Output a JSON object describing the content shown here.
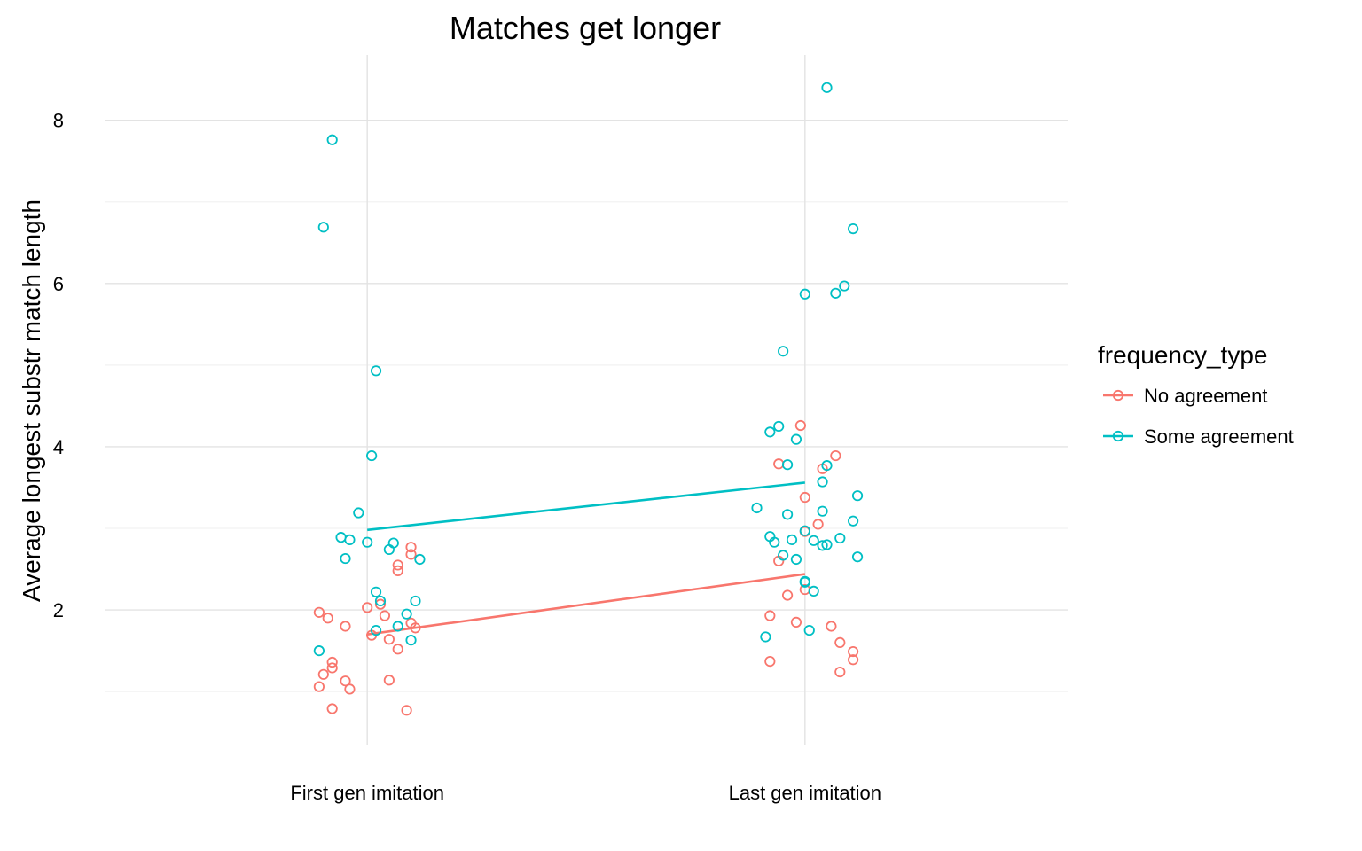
{
  "chart_data": {
    "type": "scatter",
    "title": "Matches get longer",
    "xlabel": "",
    "ylabel": "Average longest substr match length",
    "categories": [
      "First gen imitation",
      "Last gen imitation"
    ],
    "ylim": [
      0.35,
      8.8
    ],
    "yticks": [
      2,
      4,
      6,
      8
    ],
    "grid": true,
    "legend": {
      "title": "frequency_type",
      "placement": "right"
    },
    "series": [
      {
        "name": "No agreement",
        "color": "#F8766D",
        "means": [
          1.7,
          2.44
        ],
        "points": [
          {
            "x": 0.89,
            "y": 1.97
          },
          {
            "x": 0.91,
            "y": 1.9
          },
          {
            "x": 0.95,
            "y": 1.8
          },
          {
            "x": 0.92,
            "y": 1.36
          },
          {
            "x": 0.92,
            "y": 1.29
          },
          {
            "x": 0.9,
            "y": 1.21
          },
          {
            "x": 0.89,
            "y": 1.06
          },
          {
            "x": 0.95,
            "y": 1.13
          },
          {
            "x": 0.96,
            "y": 1.03
          },
          {
            "x": 0.92,
            "y": 0.79
          },
          {
            "x": 1.0,
            "y": 2.03
          },
          {
            "x": 1.04,
            "y": 1.93
          },
          {
            "x": 1.01,
            "y": 1.69
          },
          {
            "x": 1.05,
            "y": 1.64
          },
          {
            "x": 1.07,
            "y": 1.52
          },
          {
            "x": 1.05,
            "y": 1.14
          },
          {
            "x": 1.09,
            "y": 0.77
          },
          {
            "x": 1.07,
            "y": 2.48
          },
          {
            "x": 1.07,
            "y": 2.55
          },
          {
            "x": 1.1,
            "y": 2.77
          },
          {
            "x": 1.1,
            "y": 2.68
          },
          {
            "x": 1.1,
            "y": 1.84
          },
          {
            "x": 1.11,
            "y": 1.78
          },
          {
            "x": 1.03,
            "y": 2.07
          },
          {
            "x": 1.99,
            "y": 4.26
          },
          {
            "x": 1.94,
            "y": 3.79
          },
          {
            "x": 2.07,
            "y": 3.89
          },
          {
            "x": 2.04,
            "y": 3.73
          },
          {
            "x": 2.0,
            "y": 3.38
          },
          {
            "x": 2.03,
            "y": 3.05
          },
          {
            "x": 2.0,
            "y": 2.96
          },
          {
            "x": 1.94,
            "y": 2.6
          },
          {
            "x": 1.96,
            "y": 2.18
          },
          {
            "x": 2.0,
            "y": 2.25
          },
          {
            "x": 1.92,
            "y": 1.93
          },
          {
            "x": 1.98,
            "y": 1.85
          },
          {
            "x": 2.06,
            "y": 1.8
          },
          {
            "x": 2.08,
            "y": 1.6
          },
          {
            "x": 2.11,
            "y": 1.49
          },
          {
            "x": 2.11,
            "y": 1.39
          },
          {
            "x": 1.92,
            "y": 1.37
          },
          {
            "x": 2.08,
            "y": 1.24
          }
        ]
      },
      {
        "name": "Some agreement",
        "color": "#00BFC4",
        "means": [
          2.98,
          3.56
        ],
        "points": [
          {
            "x": 0.92,
            "y": 7.76
          },
          {
            "x": 0.9,
            "y": 6.69
          },
          {
            "x": 1.02,
            "y": 4.93
          },
          {
            "x": 1.01,
            "y": 3.89
          },
          {
            "x": 0.98,
            "y": 3.19
          },
          {
            "x": 0.94,
            "y": 2.89
          },
          {
            "x": 0.96,
            "y": 2.86
          },
          {
            "x": 1.0,
            "y": 2.83
          },
          {
            "x": 0.95,
            "y": 2.63
          },
          {
            "x": 1.06,
            "y": 2.82
          },
          {
            "x": 1.05,
            "y": 2.74
          },
          {
            "x": 1.12,
            "y": 2.62
          },
          {
            "x": 1.02,
            "y": 2.22
          },
          {
            "x": 1.03,
            "y": 2.11
          },
          {
            "x": 1.11,
            "y": 2.11
          },
          {
            "x": 1.09,
            "y": 1.95
          },
          {
            "x": 1.07,
            "y": 1.8
          },
          {
            "x": 1.02,
            "y": 1.75
          },
          {
            "x": 1.1,
            "y": 1.63
          },
          {
            "x": 0.89,
            "y": 1.5
          },
          {
            "x": 2.05,
            "y": 8.4
          },
          {
            "x": 2.11,
            "y": 6.67
          },
          {
            "x": 2.09,
            "y": 5.97
          },
          {
            "x": 2.07,
            "y": 5.88
          },
          {
            "x": 2.0,
            "y": 5.87
          },
          {
            "x": 1.95,
            "y": 5.17
          },
          {
            "x": 1.94,
            "y": 4.25
          },
          {
            "x": 1.92,
            "y": 4.18
          },
          {
            "x": 1.98,
            "y": 4.09
          },
          {
            "x": 1.96,
            "y": 3.78
          },
          {
            "x": 2.05,
            "y": 3.77
          },
          {
            "x": 2.04,
            "y": 3.57
          },
          {
            "x": 2.12,
            "y": 3.4
          },
          {
            "x": 1.89,
            "y": 3.25
          },
          {
            "x": 2.04,
            "y": 3.21
          },
          {
            "x": 1.96,
            "y": 3.17
          },
          {
            "x": 2.11,
            "y": 3.09
          },
          {
            "x": 2.0,
            "y": 2.97
          },
          {
            "x": 1.92,
            "y": 2.9
          },
          {
            "x": 1.97,
            "y": 2.86
          },
          {
            "x": 2.02,
            "y": 2.85
          },
          {
            "x": 2.08,
            "y": 2.88
          },
          {
            "x": 1.93,
            "y": 2.83
          },
          {
            "x": 2.04,
            "y": 2.79
          },
          {
            "x": 2.05,
            "y": 2.8
          },
          {
            "x": 1.95,
            "y": 2.67
          },
          {
            "x": 1.98,
            "y": 2.62
          },
          {
            "x": 2.12,
            "y": 2.65
          },
          {
            "x": 2.0,
            "y": 2.35
          },
          {
            "x": 2.0,
            "y": 2.34
          },
          {
            "x": 2.02,
            "y": 2.23
          },
          {
            "x": 1.91,
            "y": 1.67
          },
          {
            "x": 2.01,
            "y": 1.75
          }
        ]
      }
    ]
  }
}
